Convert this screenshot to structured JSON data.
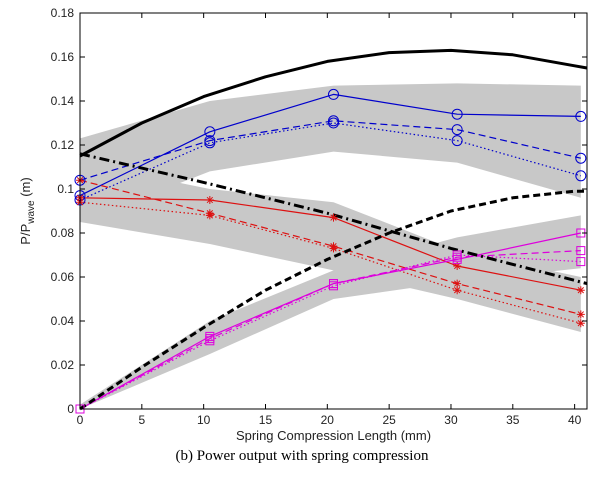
{
  "chart_data": {
    "type": "line",
    "xlabel": "Spring Compression Length (mm)",
    "ylabel": "P/P",
    "ylabel_sub": "wave",
    "ylabel_unit": " (m)",
    "xlim": [
      0,
      41
    ],
    "ylim": [
      0,
      0.18
    ],
    "xticks": [
      0,
      5,
      10,
      15,
      20,
      25,
      30,
      35,
      40
    ],
    "yticks": [
      0,
      0.02,
      0.04,
      0.06,
      0.08,
      0.1,
      0.12,
      0.14,
      0.16,
      0.18
    ],
    "ytick_labels": [
      "0",
      "0.02",
      "0.04",
      "0.06",
      "0.08",
      "0.1",
      "0.12",
      "0.14",
      "0.16",
      "0.18"
    ],
    "grid": false,
    "bands": [
      {
        "color": "#c8c8c8",
        "x": [
          0,
          10.5,
          20.5,
          30.5,
          40.5
        ],
        "upper": [
          0.123,
          0.14,
          0.147,
          0.148,
          0.147
        ],
        "lower": [
          0.085,
          0.108,
          0.117,
          0.112,
          0.096
        ]
      },
      {
        "color": "#c8c8c8",
        "x": [
          0,
          10.5,
          20.5,
          30.5,
          40.5
        ],
        "upper": [
          0.112,
          0.1,
          0.094,
          0.072,
          0.06
        ],
        "lower": [
          0.085,
          0.075,
          0.063,
          0.05,
          0.035
        ]
      },
      {
        "color": "#c8c8c8",
        "x": [
          0,
          10.5,
          20.5,
          30.5,
          40.5
        ],
        "upper": [
          0.002,
          0.04,
          0.063,
          0.078,
          0.088
        ],
        "lower": [
          0,
          0.025,
          0.05,
          0.058,
          0.064
        ]
      }
    ],
    "series": [
      {
        "color": "#0000cc",
        "dash": "solid",
        "width": 1.2,
        "marker": "circle",
        "x": [
          0,
          10.5,
          20.5,
          30.5,
          40.5
        ],
        "values": [
          0.097,
          0.126,
          0.143,
          0.134,
          0.133
        ]
      },
      {
        "color": "#0000cc",
        "dash": "dashed",
        "width": 1.2,
        "marker": "circle",
        "x": [
          0,
          10.5,
          20.5,
          30.5,
          40.5
        ],
        "values": [
          0.104,
          0.122,
          0.131,
          0.127,
          0.114
        ]
      },
      {
        "color": "#0000cc",
        "dash": "dotted",
        "width": 1.2,
        "marker": "circle",
        "x": [
          0,
          10.5,
          20.5,
          30.5,
          40.5
        ],
        "values": [
          0.095,
          0.121,
          0.13,
          0.122,
          0.106
        ]
      },
      {
        "color": "#dd1111",
        "dash": "solid",
        "width": 1.2,
        "marker": "star",
        "x": [
          0,
          10.5,
          20.5,
          30.5,
          40.5
        ],
        "values": [
          0.096,
          0.095,
          0.087,
          0.065,
          0.054
        ]
      },
      {
        "color": "#dd1111",
        "dash": "dashed",
        "width": 1.2,
        "marker": "star",
        "x": [
          0,
          10.5,
          20.5,
          30.5,
          40.5
        ],
        "values": [
          0.104,
          0.089,
          0.074,
          0.057,
          0.043
        ]
      },
      {
        "color": "#dd1111",
        "dash": "dotted",
        "width": 1.2,
        "marker": "star",
        "x": [
          0,
          10.5,
          20.5,
          30.5,
          40.5
        ],
        "values": [
          0.094,
          0.088,
          0.073,
          0.054,
          0.039
        ]
      },
      {
        "color": "#dd00dd",
        "dash": "solid",
        "width": 1.2,
        "marker": "square",
        "x": [
          0,
          10.5,
          20.5,
          30.5,
          40.5
        ],
        "values": [
          0,
          0.033,
          0.057,
          0.068,
          0.08
        ]
      },
      {
        "color": "#dd00dd",
        "dash": "dashed",
        "width": 1.2,
        "marker": "square",
        "x": [
          0,
          10.5,
          20.5,
          30.5,
          40.5
        ],
        "values": [
          0,
          0.032,
          0.057,
          0.069,
          0.072
        ]
      },
      {
        "color": "#dd00dd",
        "dash": "dotted",
        "width": 1.2,
        "marker": "square",
        "x": [
          0,
          10.5,
          20.5,
          30.5,
          40.5
        ],
        "values": [
          0,
          0.031,
          0.056,
          0.07,
          0.067
        ]
      },
      {
        "color": "#000000",
        "dash": "solid",
        "width": 3,
        "marker": "none",
        "x": [
          0,
          5,
          10,
          15,
          20,
          25,
          30,
          35,
          40,
          41
        ],
        "values": [
          0.115,
          0.13,
          0.142,
          0.151,
          0.158,
          0.162,
          0.163,
          0.161,
          0.156,
          0.155
        ]
      },
      {
        "color": "#000000",
        "dash": "dashdot",
        "width": 3,
        "marker": "none",
        "x": [
          0,
          10,
          20,
          30,
          41
        ],
        "values": [
          0.116,
          0.103,
          0.089,
          0.073,
          0.057
        ]
      },
      {
        "color": "#000000",
        "dash": "dashed",
        "width": 3,
        "marker": "none",
        "x": [
          0,
          5,
          10,
          15,
          20,
          25,
          30,
          35,
          40,
          41
        ],
        "values": [
          0,
          0.019,
          0.037,
          0.054,
          0.068,
          0.08,
          0.09,
          0.096,
          0.099,
          0.099
        ]
      }
    ]
  },
  "caption": "(b) Power output with spring compression"
}
